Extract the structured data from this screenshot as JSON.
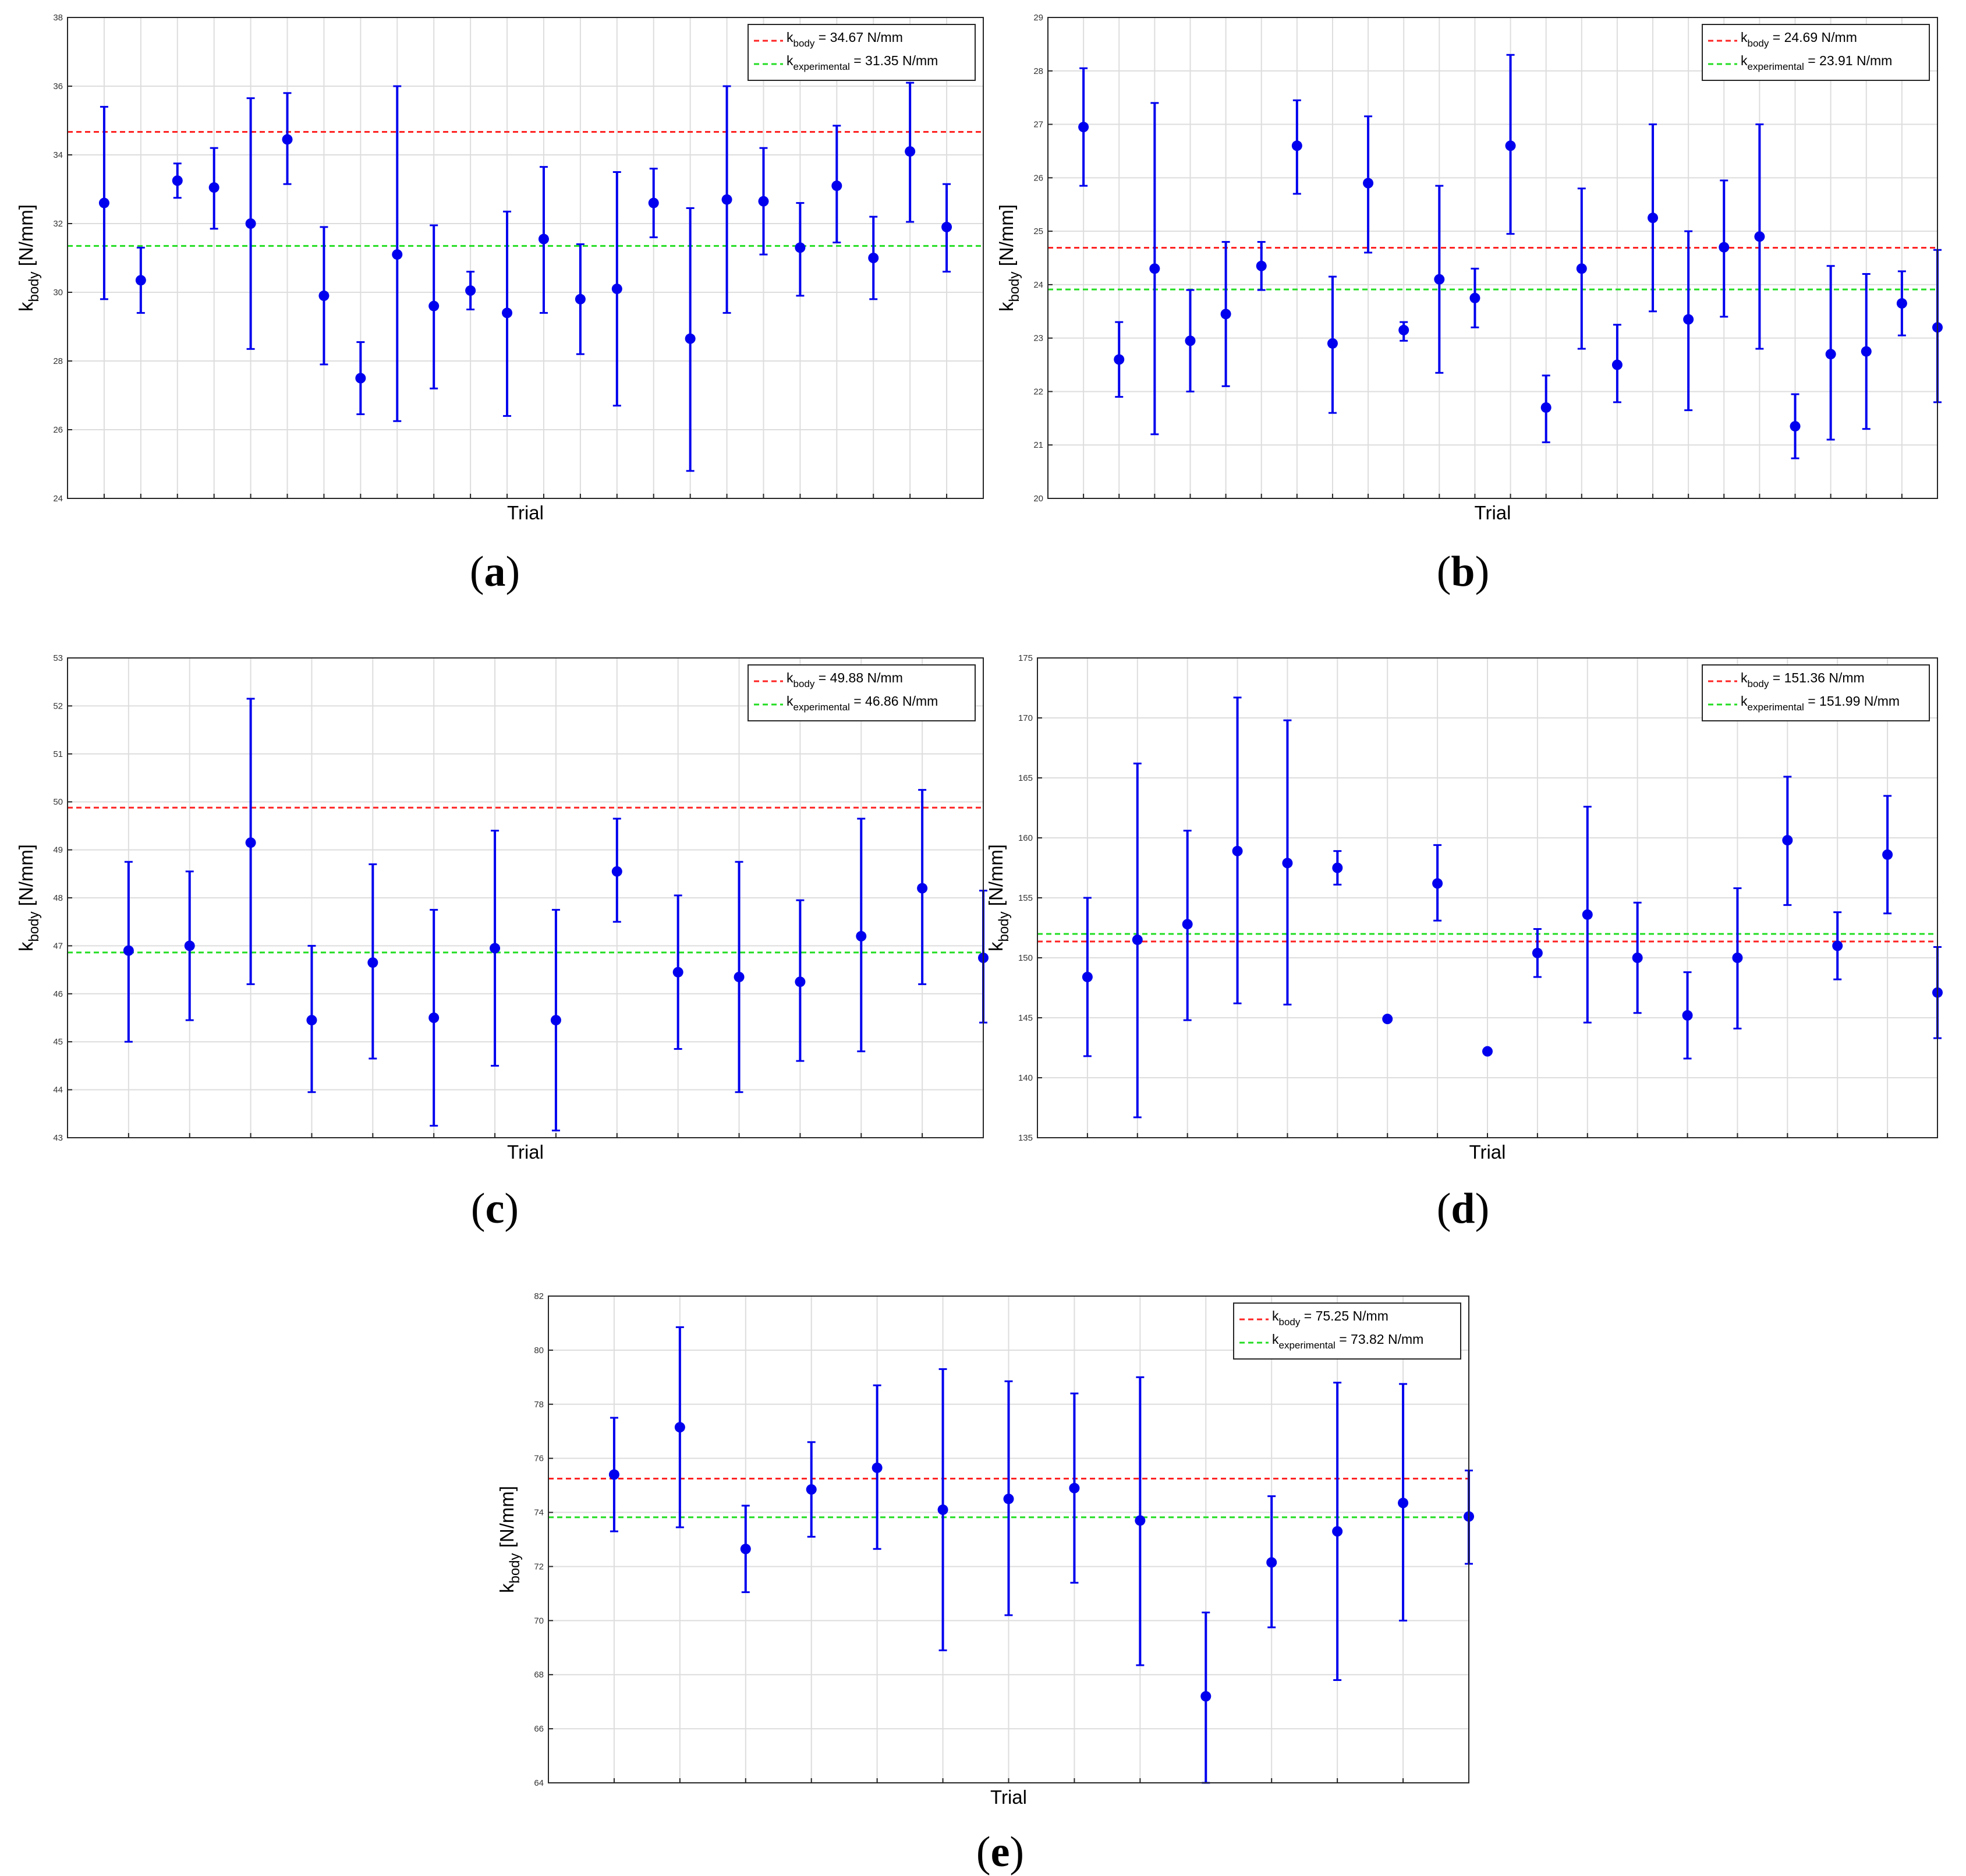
{
  "colors": {
    "points": "#0000ee",
    "kbody_line": "#ff2222",
    "kexp_line": "#22dd22",
    "grid": "#dddddd",
    "axes": "#262626"
  },
  "chart_data": [
    {
      "id": "a",
      "caption": "a",
      "type": "scatter",
      "error_bars": true,
      "xlabel": "Trial",
      "ylabel_main": "k",
      "ylabel_sub": "body",
      "ylabel_tail": " [N/mm]",
      "ylim": [
        24,
        38
      ],
      "yticks": [
        24,
        26,
        28,
        30,
        32,
        34,
        36,
        38
      ],
      "n_grid_x": 25,
      "grid": true,
      "legend_position": "top-right",
      "points": [
        {
          "x": 1,
          "y": 32.6,
          "low": 29.8,
          "high": 35.4
        },
        {
          "x": 2,
          "y": 30.35,
          "low": 29.4,
          "high": 31.3
        },
        {
          "x": 3,
          "y": 33.25,
          "low": 32.75,
          "high": 33.75
        },
        {
          "x": 4,
          "y": 33.05,
          "low": 31.85,
          "high": 34.2
        },
        {
          "x": 5,
          "y": 32.0,
          "low": 28.35,
          "high": 35.65
        },
        {
          "x": 6,
          "y": 34.45,
          "low": 33.15,
          "high": 35.8
        },
        {
          "x": 7,
          "y": 29.9,
          "low": 27.9,
          "high": 31.9
        },
        {
          "x": 8,
          "y": 27.5,
          "low": 26.45,
          "high": 28.55
        },
        {
          "x": 9,
          "y": 31.1,
          "low": 26.25,
          "high": 36.0
        },
        {
          "x": 10,
          "y": 29.6,
          "low": 27.2,
          "high": 31.95
        },
        {
          "x": 11,
          "y": 30.05,
          "low": 29.5,
          "high": 30.6
        },
        {
          "x": 12,
          "y": 29.4,
          "low": 26.4,
          "high": 32.35
        },
        {
          "x": 13,
          "y": 31.55,
          "low": 29.4,
          "high": 33.65
        },
        {
          "x": 14,
          "y": 29.8,
          "low": 28.2,
          "high": 31.4
        },
        {
          "x": 15,
          "y": 30.1,
          "low": 26.7,
          "high": 33.5
        },
        {
          "x": 16,
          "y": 32.6,
          "low": 31.6,
          "high": 33.6
        },
        {
          "x": 17,
          "y": 28.65,
          "low": 24.8,
          "high": 32.45
        },
        {
          "x": 18,
          "y": 32.7,
          "low": 29.4,
          "high": 36.0
        },
        {
          "x": 19,
          "y": 32.65,
          "low": 31.1,
          "high": 34.2
        },
        {
          "x": 20,
          "y": 31.3,
          "low": 29.9,
          "high": 32.6
        },
        {
          "x": 21,
          "y": 33.1,
          "low": 31.45,
          "high": 34.85
        },
        {
          "x": 22,
          "y": 31.0,
          "low": 29.8,
          "high": 32.2
        },
        {
          "x": 23,
          "y": 34.1,
          "low": 32.05,
          "high": 36.1
        },
        {
          "x": 24,
          "y": 31.9,
          "low": 30.6,
          "high": 33.15
        }
      ],
      "lines": [
        {
          "value": 34.67,
          "color_key": "kbody_line",
          "legend_sub": "body",
          "legend_rest": " = 34.67 N/mm"
        },
        {
          "value": 31.35,
          "color_key": "kexp_line",
          "legend_sub": "experimental",
          "legend_rest": " = 31.35 N/mm"
        }
      ]
    },
    {
      "id": "b",
      "caption": "b",
      "type": "scatter",
      "error_bars": true,
      "xlabel": "Trial",
      "ylabel_main": "k",
      "ylabel_sub": "body",
      "ylabel_tail": " [N/mm]",
      "ylim": [
        20,
        29
      ],
      "yticks": [
        20,
        21,
        22,
        23,
        24,
        25,
        26,
        27,
        28,
        29
      ],
      "n_grid_x": 25,
      "grid": true,
      "legend_position": "top-right",
      "points": [
        {
          "x": 1,
          "y": 26.95,
          "low": 25.85,
          "high": 28.05
        },
        {
          "x": 2,
          "y": 22.6,
          "low": 21.9,
          "high": 23.3
        },
        {
          "x": 3,
          "y": 24.3,
          "low": 21.2,
          "high": 27.4
        },
        {
          "x": 4,
          "y": 22.95,
          "low": 22.0,
          "high": 23.9
        },
        {
          "x": 5,
          "y": 23.45,
          "low": 22.1,
          "high": 24.8
        },
        {
          "x": 6,
          "y": 24.35,
          "low": 23.9,
          "high": 24.8
        },
        {
          "x": 7,
          "y": 26.6,
          "low": 25.7,
          "high": 27.45
        },
        {
          "x": 8,
          "y": 22.9,
          "low": 21.6,
          "high": 24.15
        },
        {
          "x": 9,
          "y": 25.9,
          "low": 24.6,
          "high": 27.15
        },
        {
          "x": 10,
          "y": 23.15,
          "low": 22.95,
          "high": 23.3
        },
        {
          "x": 11,
          "y": 24.1,
          "low": 22.35,
          "high": 25.85
        },
        {
          "x": 12,
          "y": 23.75,
          "low": 23.2,
          "high": 24.3
        },
        {
          "x": 13,
          "y": 26.6,
          "low": 24.95,
          "high": 28.3
        },
        {
          "x": 14,
          "y": 21.7,
          "low": 21.05,
          "high": 22.3
        },
        {
          "x": 15,
          "y": 24.3,
          "low": 22.8,
          "high": 25.8
        },
        {
          "x": 16,
          "y": 22.5,
          "low": 21.8,
          "high": 23.25
        },
        {
          "x": 17,
          "y": 25.25,
          "low": 23.5,
          "high": 27.0
        },
        {
          "x": 18,
          "y": 23.35,
          "low": 21.65,
          "high": 25.0
        },
        {
          "x": 19,
          "y": 24.7,
          "low": 23.4,
          "high": 25.95
        },
        {
          "x": 20,
          "y": 24.9,
          "low": 22.8,
          "high": 27.0
        },
        {
          "x": 21,
          "y": 21.35,
          "low": 20.75,
          "high": 21.95
        },
        {
          "x": 22,
          "y": 22.7,
          "low": 21.1,
          "high": 24.35
        },
        {
          "x": 23,
          "y": 22.75,
          "low": 21.3,
          "high": 24.2
        },
        {
          "x": 24,
          "y": 23.65,
          "low": 23.05,
          "high": 24.25
        },
        {
          "x": 25,
          "y": 23.2,
          "low": 21.8,
          "high": 24.65
        }
      ],
      "lines": [
        {
          "value": 24.69,
          "color_key": "kbody_line",
          "legend_sub": "body",
          "legend_rest": " = 24.69 N/mm"
        },
        {
          "value": 23.91,
          "color_key": "kexp_line",
          "legend_sub": "experimental",
          "legend_rest": " = 23.91 N/mm"
        }
      ]
    },
    {
      "id": "c",
      "caption": "c",
      "type": "scatter",
      "error_bars": true,
      "xlabel": "Trial",
      "ylabel_main": "k",
      "ylabel_sub": "body",
      "ylabel_tail": " [N/mm]",
      "ylim": [
        43,
        53
      ],
      "yticks": [
        43,
        44,
        45,
        46,
        47,
        48,
        49,
        50,
        51,
        52,
        53
      ],
      "n_grid_x": 15,
      "grid": true,
      "legend_position": "top-right",
      "points": [
        {
          "x": 1,
          "y": 46.9,
          "low": 45.0,
          "high": 48.75
        },
        {
          "x": 2,
          "y": 47.0,
          "low": 45.45,
          "high": 48.55
        },
        {
          "x": 3,
          "y": 49.15,
          "low": 46.2,
          "high": 52.15
        },
        {
          "x": 4,
          "y": 45.45,
          "low": 43.95,
          "high": 47.0
        },
        {
          "x": 5,
          "y": 46.65,
          "low": 44.65,
          "high": 48.7
        },
        {
          "x": 6,
          "y": 45.5,
          "low": 43.25,
          "high": 47.75
        },
        {
          "x": 7,
          "y": 46.95,
          "low": 44.5,
          "high": 49.4
        },
        {
          "x": 8,
          "y": 45.45,
          "low": 43.15,
          "high": 47.75
        },
        {
          "x": 9,
          "y": 48.55,
          "low": 47.5,
          "high": 49.65
        },
        {
          "x": 10,
          "y": 46.45,
          "low": 44.85,
          "high": 48.05
        },
        {
          "x": 11,
          "y": 46.35,
          "low": 43.95,
          "high": 48.75
        },
        {
          "x": 12,
          "y": 46.25,
          "low": 44.6,
          "high": 47.95
        },
        {
          "x": 13,
          "y": 47.2,
          "low": 44.8,
          "high": 49.65
        },
        {
          "x": 14,
          "y": 48.2,
          "low": 46.2,
          "high": 50.25
        },
        {
          "x": 15,
          "y": 46.75,
          "low": 45.4,
          "high": 48.15
        }
      ],
      "lines": [
        {
          "value": 49.88,
          "color_key": "kbody_line",
          "legend_sub": "body",
          "legend_rest": " = 49.88 N/mm"
        },
        {
          "value": 46.86,
          "color_key": "kexp_line",
          "legend_sub": "experimental",
          "legend_rest": " = 46.86 N/mm"
        }
      ]
    },
    {
      "id": "d",
      "caption": "d",
      "type": "scatter",
      "error_bars": true,
      "xlabel": "Trial",
      "ylabel_main": "k",
      "ylabel_sub": "body",
      "ylabel_tail": " [N/mm]",
      "ylim": [
        135,
        175
      ],
      "yticks": [
        135,
        140,
        145,
        150,
        155,
        160,
        165,
        170,
        175
      ],
      "n_grid_x": 18,
      "grid": true,
      "legend_position": "top-right",
      "points": [
        {
          "x": 1,
          "y": 148.4,
          "low": 141.8,
          "high": 155.0
        },
        {
          "x": 2,
          "y": 151.5,
          "low": 136.7,
          "high": 166.2
        },
        {
          "x": 3,
          "y": 152.8,
          "low": 144.8,
          "high": 160.6
        },
        {
          "x": 4,
          "y": 158.9,
          "low": 146.2,
          "high": 171.7
        },
        {
          "x": 5,
          "y": 157.9,
          "low": 146.1,
          "high": 169.8
        },
        {
          "x": 6,
          "y": 157.5,
          "low": 156.1,
          "high": 158.9
        },
        {
          "x": 7,
          "y": 144.9
        },
        {
          "x": 8,
          "y": 156.2,
          "low": 153.1,
          "high": 159.4
        },
        {
          "x": 9,
          "y": 142.2
        },
        {
          "x": 10,
          "y": 150.4,
          "low": 148.4,
          "high": 152.4
        },
        {
          "x": 11,
          "y": 153.6,
          "low": 144.6,
          "high": 162.6
        },
        {
          "x": 12,
          "y": 150.0,
          "low": 145.4,
          "high": 154.6
        },
        {
          "x": 13,
          "y": 145.2,
          "low": 141.6,
          "high": 148.8
        },
        {
          "x": 14,
          "y": 150.0,
          "low": 144.1,
          "high": 155.8
        },
        {
          "x": 15,
          "y": 159.8,
          "low": 154.4,
          "high": 165.1
        },
        {
          "x": 16,
          "y": 151.0,
          "low": 148.2,
          "high": 153.8
        },
        {
          "x": 17,
          "y": 158.6,
          "low": 153.7,
          "high": 163.5
        },
        {
          "x": 18,
          "y": 147.1,
          "low": 143.3,
          "high": 150.9
        }
      ],
      "lines": [
        {
          "value": 151.36,
          "color_key": "kbody_line",
          "legend_sub": "body",
          "legend_rest": " = 151.36 N/mm"
        },
        {
          "value": 151.99,
          "color_key": "kexp_line",
          "legend_sub": "experimental",
          "legend_rest": " = 151.99 N/mm"
        }
      ]
    },
    {
      "id": "e",
      "caption": "e",
      "type": "scatter",
      "error_bars": true,
      "xlabel": "Trial",
      "ylabel_main": "k",
      "ylabel_sub": "body",
      "ylabel_tail": " [N/mm]",
      "ylim": [
        64,
        82
      ],
      "yticks": [
        64,
        66,
        68,
        70,
        72,
        74,
        76,
        78,
        80,
        82
      ],
      "n_grid_x": 14,
      "grid": true,
      "legend_position": "top-right",
      "points": [
        {
          "x": 1,
          "y": 75.4,
          "low": 73.3,
          "high": 77.5
        },
        {
          "x": 2,
          "y": 77.15,
          "low": 73.45,
          "high": 80.85
        },
        {
          "x": 3,
          "y": 72.65,
          "low": 71.05,
          "high": 74.25
        },
        {
          "x": 4,
          "y": 74.85,
          "low": 73.1,
          "high": 76.6
        },
        {
          "x": 5,
          "y": 75.65,
          "low": 72.65,
          "high": 78.7
        },
        {
          "x": 6,
          "y": 74.1,
          "low": 68.9,
          "high": 79.3
        },
        {
          "x": 7,
          "y": 74.5,
          "low": 70.2,
          "high": 78.85
        },
        {
          "x": 8,
          "y": 74.9,
          "low": 71.4,
          "high": 78.4
        },
        {
          "x": 9,
          "y": 73.7,
          "low": 68.35,
          "high": 79.0
        },
        {
          "x": 10,
          "y": 67.2,
          "low": 64.0,
          "high": 70.3
        },
        {
          "x": 11,
          "y": 72.15,
          "low": 69.75,
          "high": 74.6
        },
        {
          "x": 12,
          "y": 73.3,
          "low": 67.8,
          "high": 78.8
        },
        {
          "x": 13,
          "y": 74.35,
          "low": 70.0,
          "high": 78.75
        },
        {
          "x": 14,
          "y": 73.85,
          "low": 72.1,
          "high": 75.55
        }
      ],
      "lines": [
        {
          "value": 75.25,
          "color_key": "kbody_line",
          "legend_sub": "body",
          "legend_rest": " = 75.25 N/mm"
        },
        {
          "value": 73.82,
          "color_key": "kexp_line",
          "legend_sub": "experimental",
          "legend_rest": " = 73.82 N/mm"
        }
      ]
    }
  ]
}
